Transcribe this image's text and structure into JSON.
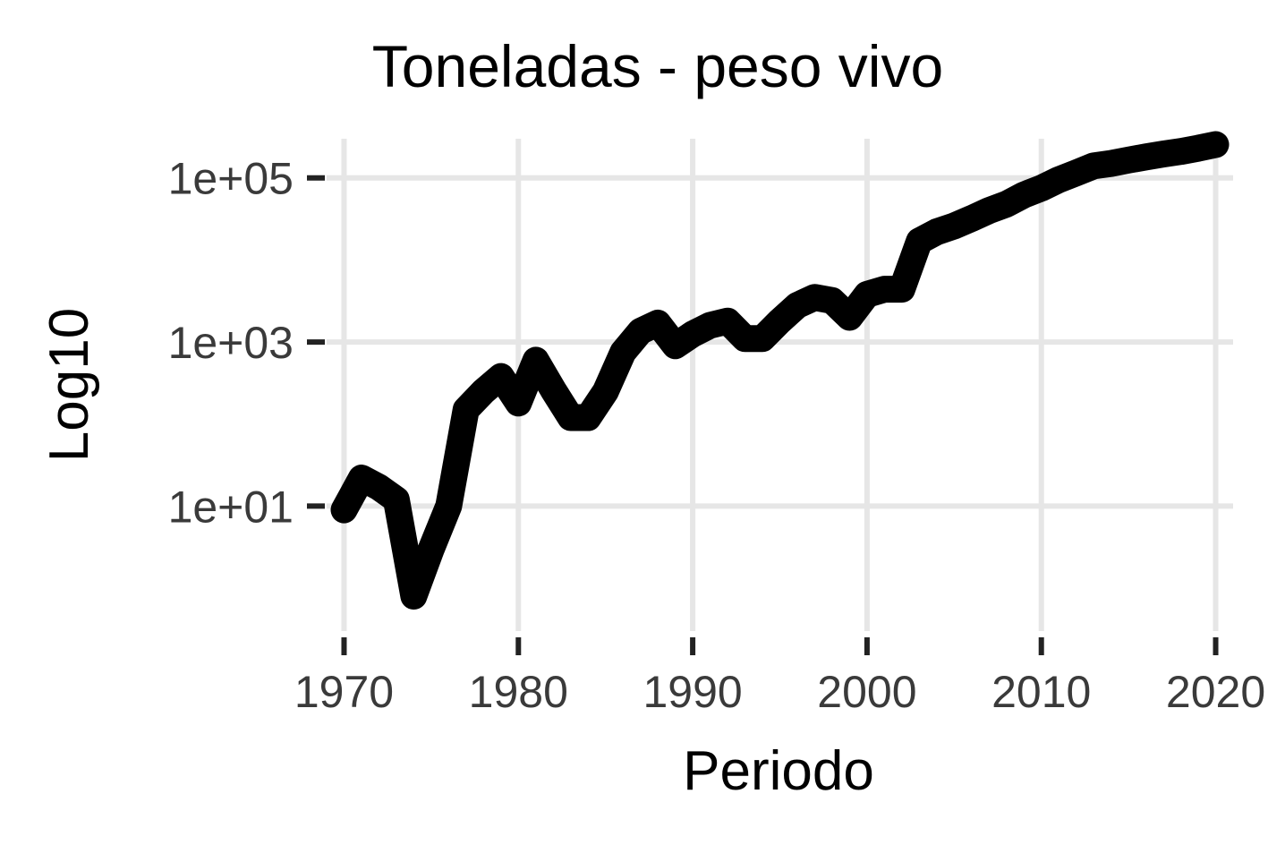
{
  "chart_data": {
    "type": "line",
    "title": "Toneladas - peso vivo",
    "xlabel": "Periodo",
    "ylabel": "Log10",
    "y_scale": "log10",
    "grid": true,
    "legend": "none",
    "line_color": "#000000",
    "grid_color": "#e6e6e6",
    "xlim": [
      1969,
      2021
    ],
    "ylim": [
      0.3,
      300000.0
    ],
    "x_ticks": [
      1970,
      1980,
      1990,
      2000,
      2010,
      2020
    ],
    "x_tick_labels": [
      "1970",
      "1980",
      "1990",
      "2000",
      "2010",
      "2020"
    ],
    "y_ticks": [
      10,
      1000,
      100000
    ],
    "y_tick_labels": [
      "1e+01",
      "1e+03",
      "1e+05"
    ],
    "series": [
      {
        "x": [
          1970,
          1971,
          1972,
          1973,
          1974,
          1975,
          1976,
          1977,
          1978,
          1979,
          1980,
          1981,
          1982,
          1983,
          1984,
          1985,
          1986,
          1987,
          1988,
          1989,
          1990,
          1991,
          1992,
          1993,
          1994,
          1995,
          1996,
          1997,
          1998,
          1999,
          2000,
          2001,
          2002,
          2003,
          2004,
          2005,
          2006,
          2007,
          2008,
          2009,
          2010,
          2011,
          2012,
          2013,
          2014,
          2015,
          2016,
          2017,
          2018,
          2019,
          2020
        ],
        "values": [
          9,
          22,
          17,
          12,
          0.8,
          3,
          10,
          150,
          250,
          380,
          180,
          600,
          260,
          120,
          120,
          250,
          750,
          1350,
          1700,
          900,
          1250,
          1600,
          1800,
          1100,
          1100,
          1800,
          2800,
          3500,
          3200,
          2000,
          3800,
          4400,
          4400,
          17000,
          22000,
          26000,
          32000,
          40000,
          48000,
          62000,
          75000,
          95000,
          115000,
          140000,
          150000,
          165000,
          180000,
          195000,
          210000,
          230000,
          255000
        ]
      }
    ]
  }
}
